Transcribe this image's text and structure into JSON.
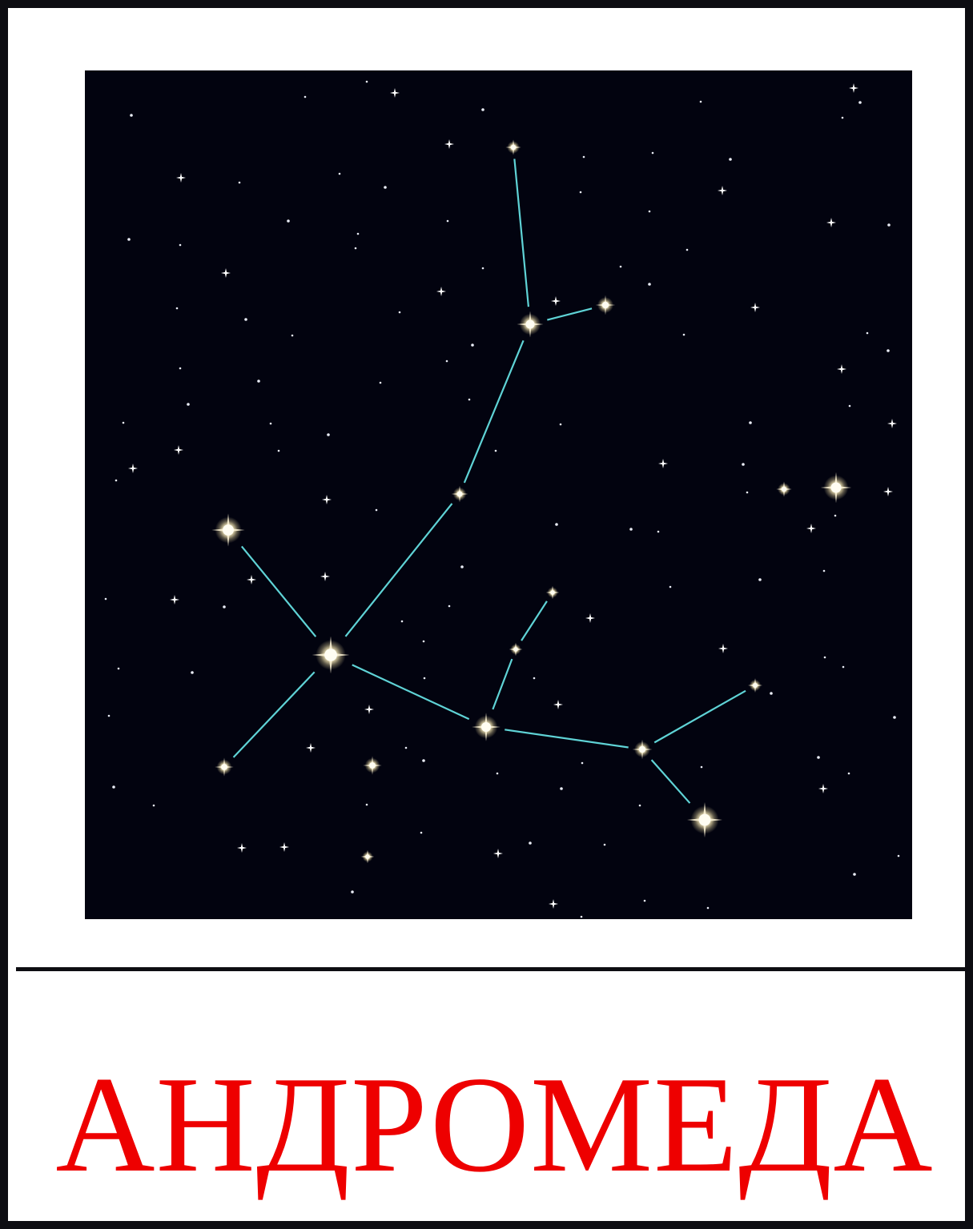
{
  "card": {
    "title": "АНДРОМЕДА",
    "title_color": "#ee0000",
    "sky_color": "#02030f",
    "line_color": "#5fd3d6",
    "star_color": "#fff6d8"
  }
}
